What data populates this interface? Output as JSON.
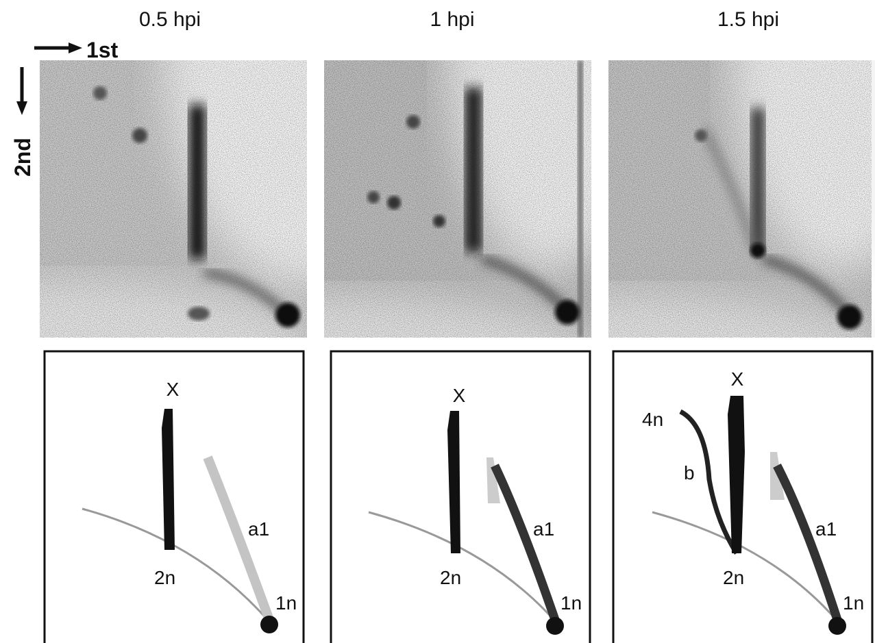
{
  "header": {
    "columns": [
      "0.5 hpi",
      "1 hpi",
      "1.5 hpi"
    ]
  },
  "axes": {
    "first": "1st",
    "second": "2nd"
  },
  "diagrams": [
    {
      "labels": [
        "X",
        "a1",
        "2n",
        "1n"
      ]
    },
    {
      "labels": [
        "X",
        "a1",
        "2n",
        "1n"
      ]
    },
    {
      "labels": [
        "X",
        "4n",
        "b",
        "a1",
        "2n",
        "1n"
      ]
    }
  ]
}
